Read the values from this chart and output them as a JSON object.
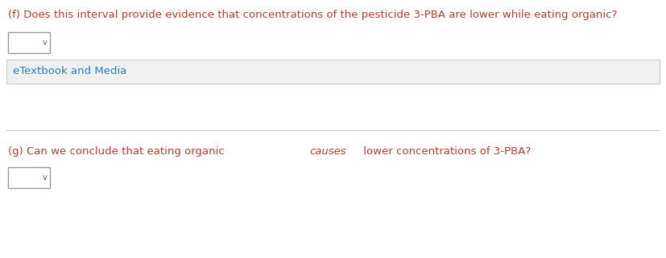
{
  "bg_color": "#ffffff",
  "text_color_main": "#c0392b",
  "text_color_secondary": "#2980b9",
  "line_color": "#cccccc",
  "etextbook_bg": "#f0f0f0",
  "etextbook_border": "#cccccc",
  "dropdown_border": "#999999",
  "dropdown_bg": "#ffffff",
  "question_f_label": "(f) ",
  "question_f_text": "Does this interval provide evidence that concentrations of the pesticide 3-PBA are lower while eating organic?",
  "etextbook_text": "eTextbook and Media",
  "question_g_label": "(g) ",
  "question_g_text_before": "Can we conclude that eating organic ",
  "question_g_italic": "causes",
  "question_g_text_after": " lower concentrations of 3-PBA?",
  "figwidth": 8.27,
  "figheight": 3.21,
  "dpi": 100
}
